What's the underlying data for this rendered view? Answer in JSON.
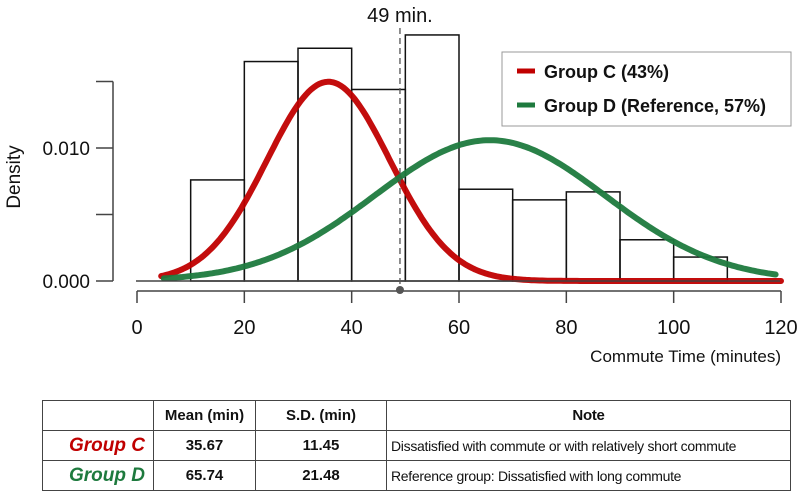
{
  "chart_data": {
    "type": "histogram-with-density-curves",
    "xlabel": "Commute Time (minutes)",
    "ylabel": "Density",
    "xlim": [
      0,
      120
    ],
    "ylim": [
      0,
      0.015
    ],
    "x_ticks": [
      0,
      20,
      40,
      60,
      80,
      100,
      120
    ],
    "y_ticks": [
      0.0,
      0.005,
      0.01,
      0.015
    ],
    "y_tick_labels": {
      "0": "0.000",
      "2": "0.010"
    },
    "grid": false,
    "histogram": {
      "bin_edges": [
        10,
        20,
        30,
        40,
        50,
        60,
        70,
        80,
        90,
        100,
        110
      ],
      "densities": [
        0.0076,
        0.0165,
        0.0175,
        0.0144,
        0.0185,
        0.0069,
        0.0061,
        0.0067,
        0.0031,
        0.0018
      ]
    },
    "series": [
      {
        "name": "Group C (43%)",
        "color": "#c00000",
        "mean": 35.67,
        "sd": 11.45,
        "weight": 0.43,
        "x_range": [
          4.5,
          120
        ]
      },
      {
        "name": "Group D (Reference, 57%)",
        "color": "#1e7a3e",
        "mean": 65.74,
        "sd": 21.48,
        "weight": 0.57,
        "x_range": [
          5,
          119
        ]
      }
    ],
    "annotation": {
      "x": 49,
      "label": "49 min."
    },
    "legend_position": "top-right"
  },
  "table": {
    "headers": [
      "",
      "Mean (min)",
      "S.D. (min)",
      "Note"
    ],
    "rows": [
      {
        "group": "Group C",
        "color": "#c00000",
        "mean": "35.67",
        "sd": "11.45",
        "note": "Dissatisfied with commute or with relatively short commute"
      },
      {
        "group": "Group D",
        "color": "#1e7a3e",
        "mean": "65.74",
        "sd": "21.48",
        "note": "Reference group: Dissatisfied with long commute"
      }
    ]
  }
}
